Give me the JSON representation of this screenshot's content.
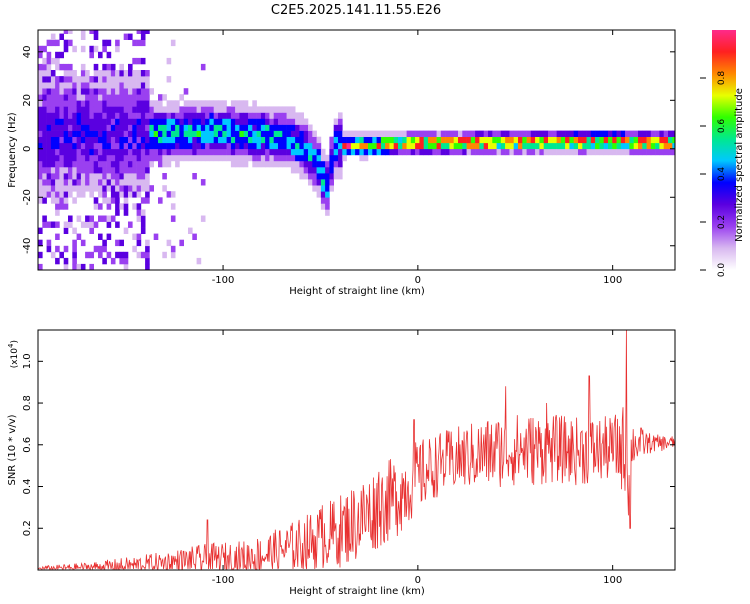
{
  "title": "C2E5.2025.141.11.55.E26",
  "colors": {
    "snr_line": "#e83030",
    "frame": "#000000"
  },
  "colormap": [
    "#ffffff",
    "#d8b8f0",
    "#9a40f0",
    "#5a00e0",
    "#0000ff",
    "#00c8ff",
    "#00e890",
    "#30ff00",
    "#e8ff00",
    "#ff8800",
    "#ff2020",
    "#ff2a8a"
  ],
  "chart_data": [
    {
      "type": "heatmap",
      "xlabel": "Height of straight line (km)",
      "ylabel": "Frequency (Hz)",
      "xlim": [
        -195,
        132
      ],
      "ylim": [
        -50,
        49
      ],
      "xticks": [
        -100,
        0,
        100
      ],
      "yticks": [
        -40,
        -20,
        0,
        20,
        40
      ],
      "ridge": {
        "x": [
          -195,
          -170,
          -150,
          -130,
          -110,
          -90,
          -75,
          -65,
          -58,
          -52,
          -48,
          -46,
          -44,
          -40,
          -30,
          -20,
          0,
          20,
          40,
          60,
          80,
          100,
          110,
          132
        ],
        "y": [
          4,
          5,
          5,
          5,
          6,
          5,
          4,
          2,
          -2,
          -8,
          -18,
          -10,
          0,
          0,
          0,
          0.5,
          1,
          1.2,
          1.4,
          1.6,
          1.8,
          2,
          1.5,
          1.5
        ]
      },
      "colorbar": {
        "label": "Normalized spectral amplitude",
        "range": [
          0,
          1
        ],
        "ticks": [
          0.0,
          0.2,
          0.4,
          0.6,
          0.8
        ]
      }
    },
    {
      "type": "line",
      "xlabel": "Height of straight line (km)",
      "ylabel": "SNR (10 * v/v)",
      "multiplier": "(x10",
      "multiplier_exp": "4",
      "multiplier_close": ")",
      "xlim": [
        -195,
        132
      ],
      "ylim": [
        0,
        1.15
      ],
      "xticks": [
        -100,
        0,
        100
      ],
      "yticks": [
        0.2,
        0.4,
        0.6,
        0.8,
        1.0
      ],
      "envelope": {
        "x": [
          -195,
          -170,
          -150,
          -130,
          -110,
          -90,
          -80,
          -70,
          -60,
          -50,
          -40,
          -30,
          -20,
          -10,
          0,
          10,
          20,
          30,
          40,
          50,
          60,
          70,
          80,
          90,
          100,
          106,
          108,
          110,
          120,
          132
        ],
        "base": [
          0.01,
          0.02,
          0.03,
          0.05,
          0.07,
          0.08,
          0.1,
          0.13,
          0.16,
          0.2,
          0.24,
          0.3,
          0.36,
          0.42,
          0.5,
          0.55,
          0.58,
          0.6,
          0.62,
          0.63,
          0.63,
          0.63,
          0.62,
          0.62,
          0.63,
          0.65,
          0.65,
          0.64,
          0.62,
          0.62
        ],
        "amp": [
          0.01,
          0.02,
          0.04,
          0.05,
          0.07,
          0.08,
          0.09,
          0.1,
          0.12,
          0.14,
          0.16,
          0.18,
          0.18,
          0.18,
          0.16,
          0.14,
          0.14,
          0.15,
          0.16,
          0.16,
          0.16,
          0.15,
          0.15,
          0.15,
          0.14,
          0.2,
          0.3,
          0.1,
          0.04,
          0.03
        ]
      },
      "spikes": [
        {
          "x": -108,
          "y": 0.24
        },
        {
          "x": -49,
          "y": 0.31
        },
        {
          "x": -20,
          "y": 0.47
        },
        {
          "x": -2,
          "y": 0.72
        },
        {
          "x": 45,
          "y": 0.88
        },
        {
          "x": 66,
          "y": 0.8
        },
        {
          "x": 88,
          "y": 0.93
        },
        {
          "x": 107,
          "y": 1.15
        },
        {
          "x": 109,
          "y": 0.2
        }
      ]
    }
  ]
}
